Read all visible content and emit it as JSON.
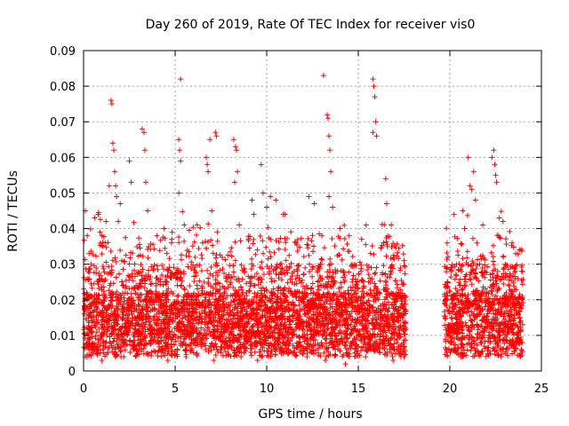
{
  "chart_data": {
    "type": "scatter",
    "title": "Day 260 of 2019, Rate Of TEC Index for receiver vis0",
    "xlabel": "GPS time / hours",
    "ylabel": "ROTI / TECUs",
    "xlim": [
      0,
      25
    ],
    "ylim": [
      0,
      0.09
    ],
    "x_ticks": [
      0,
      5,
      10,
      15,
      20,
      25
    ],
    "x_tick_labels": [
      "0",
      "5",
      "10",
      "15",
      "20",
      "25"
    ],
    "y_ticks": [
      0,
      0.01,
      0.02,
      0.03,
      0.04,
      0.05,
      0.06,
      0.07,
      0.08,
      0.09
    ],
    "y_tick_labels": [
      "0",
      "0.01",
      "0.02",
      "0.03",
      "0.04",
      "0.05",
      "0.06",
      "0.07",
      "0.08",
      "0.09"
    ],
    "grid": true,
    "marker": "+",
    "color": "#ff0000",
    "data_gap_hours": [
      17.6,
      19.7
    ],
    "series": [
      {
        "name": "ROTI",
        "points": [
          [
            0.1,
            0.045
          ],
          [
            0.2,
            0.038
          ],
          [
            0.3,
            0.033
          ],
          [
            0.6,
            0.043
          ],
          [
            0.8,
            0.044
          ],
          [
            0.9,
            0.039
          ],
          [
            1.0,
            0.038
          ],
          [
            1.2,
            0.036
          ],
          [
            1.4,
            0.052
          ],
          [
            1.5,
            0.076
          ],
          [
            1.55,
            0.075
          ],
          [
            1.6,
            0.064
          ],
          [
            1.65,
            0.062
          ],
          [
            1.7,
            0.056
          ],
          [
            1.75,
            0.052
          ],
          [
            1.8,
            0.049
          ],
          [
            1.9,
            0.042
          ],
          [
            2.0,
            0.047
          ],
          [
            2.5,
            0.059
          ],
          [
            2.6,
            0.053
          ],
          [
            3.2,
            0.068
          ],
          [
            3.3,
            0.067
          ],
          [
            3.35,
            0.062
          ],
          [
            3.4,
            0.053
          ],
          [
            3.5,
            0.045
          ],
          [
            4.0,
            0.038
          ],
          [
            4.4,
            0.04
          ],
          [
            4.8,
            0.036
          ],
          [
            5.3,
            0.082
          ],
          [
            5.2,
            0.065
          ],
          [
            5.25,
            0.062
          ],
          [
            5.3,
            0.059
          ],
          [
            5.2,
            0.05
          ],
          [
            5.5,
            0.041
          ],
          [
            6.2,
            0.041
          ],
          [
            6.5,
            0.036
          ],
          [
            6.7,
            0.06
          ],
          [
            6.75,
            0.058
          ],
          [
            6.8,
            0.056
          ],
          [
            6.9,
            0.065
          ],
          [
            7.2,
            0.067
          ],
          [
            7.25,
            0.066
          ],
          [
            7.0,
            0.045
          ],
          [
            7.3,
            0.039
          ],
          [
            8.2,
            0.065
          ],
          [
            8.3,
            0.063
          ],
          [
            8.35,
            0.062
          ],
          [
            8.4,
            0.056
          ],
          [
            8.25,
            0.053
          ],
          [
            8.5,
            0.041
          ],
          [
            9.2,
            0.048
          ],
          [
            9.3,
            0.044
          ],
          [
            9.7,
            0.058
          ],
          [
            9.8,
            0.05
          ],
          [
            10.0,
            0.046
          ],
          [
            10.2,
            0.049
          ],
          [
            10.5,
            0.048
          ],
          [
            10.9,
            0.044
          ],
          [
            11.0,
            0.044
          ],
          [
            11.6,
            0.036
          ],
          [
            12.3,
            0.049
          ],
          [
            12.6,
            0.047
          ],
          [
            13.1,
            0.083
          ],
          [
            13.3,
            0.072
          ],
          [
            13.35,
            0.071
          ],
          [
            13.4,
            0.066
          ],
          [
            13.45,
            0.062
          ],
          [
            13.5,
            0.056
          ],
          [
            13.4,
            0.049
          ],
          [
            13.6,
            0.046
          ],
          [
            14.0,
            0.04
          ],
          [
            14.5,
            0.038
          ],
          [
            15.8,
            0.082
          ],
          [
            15.85,
            0.08
          ],
          [
            15.9,
            0.077
          ],
          [
            15.95,
            0.07
          ],
          [
            15.8,
            0.067
          ],
          [
            16.0,
            0.066
          ],
          [
            16.5,
            0.054
          ],
          [
            16.55,
            0.047
          ],
          [
            16.8,
            0.041
          ],
          [
            17.5,
            0.031
          ],
          [
            19.9,
            0.032
          ],
          [
            20.7,
            0.045
          ],
          [
            20.8,
            0.04
          ],
          [
            21.0,
            0.06
          ],
          [
            21.1,
            0.052
          ],
          [
            21.2,
            0.051
          ],
          [
            21.3,
            0.056
          ],
          [
            21.4,
            0.048
          ],
          [
            21.8,
            0.041
          ],
          [
            22.3,
            0.06
          ],
          [
            22.4,
            0.062
          ],
          [
            22.45,
            0.058
          ],
          [
            22.5,
            0.055
          ],
          [
            22.55,
            0.053
          ],
          [
            22.7,
            0.043
          ],
          [
            22.9,
            0.042
          ],
          [
            23.4,
            0.036
          ],
          [
            23.8,
            0.034
          ],
          [
            0.1,
            0.004
          ],
          [
            0.3,
            0.006
          ],
          [
            1.0,
            0.003
          ],
          [
            2.2,
            0.004
          ],
          [
            3.5,
            0.005
          ],
          [
            4.6,
            0.003
          ],
          [
            5.6,
            0.004
          ],
          [
            7.1,
            0.003
          ],
          [
            8.6,
            0.004
          ],
          [
            9.5,
            0.003
          ],
          [
            10.8,
            0.005
          ],
          [
            12.2,
            0.004
          ],
          [
            13.2,
            0.003
          ],
          [
            14.3,
            0.002
          ],
          [
            15.4,
            0.004
          ],
          [
            16.9,
            0.003
          ],
          [
            17.5,
            0.004
          ],
          [
            19.8,
            0.006
          ],
          [
            20.6,
            0.004
          ],
          [
            21.7,
            0.005
          ],
          [
            22.8,
            0.004
          ],
          [
            23.9,
            0.006
          ]
        ]
      }
    ]
  }
}
